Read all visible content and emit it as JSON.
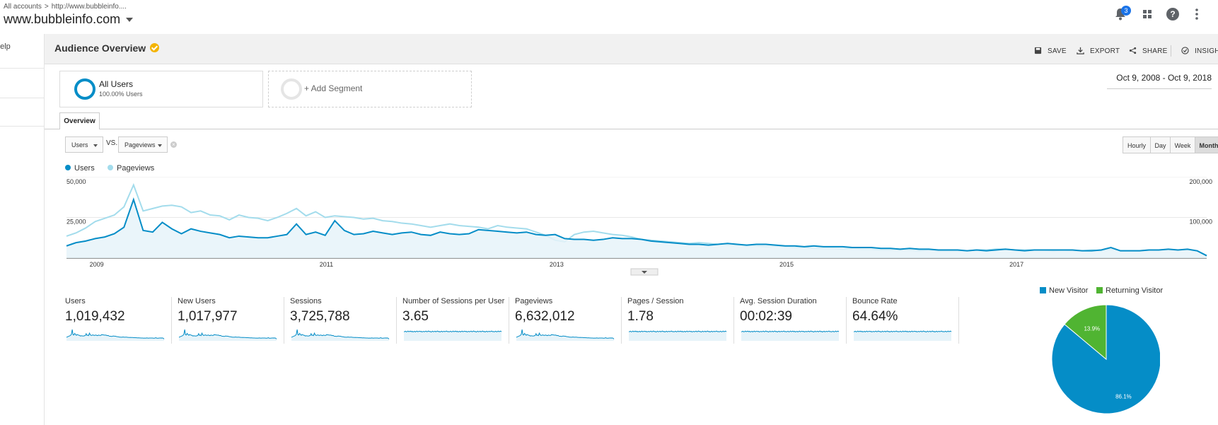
{
  "header": {
    "breadcrumb": [
      "All accounts",
      "http://www.bubbleinfo...."
    ],
    "breadcrumb_sep": ">",
    "account": "www.bubbleinfo.com",
    "notifications_count": "3"
  },
  "leftnav": {
    "help_label": "help"
  },
  "page": {
    "title": "Audience Overview",
    "actions": {
      "save": "SAVE",
      "export": "EXPORT",
      "share": "SHARE",
      "insights": "INSIGHTS"
    },
    "date_range": "Oct 9, 2008 - Oct 9, 2018"
  },
  "segments": [
    {
      "name": "All Users",
      "sub": "100.00% Users"
    },
    {
      "name": "+ Add Segment"
    }
  ],
  "tabs": {
    "overview": "Overview"
  },
  "controls": {
    "metric1": "Users",
    "vs": "VS.",
    "metric2": "Pageviews",
    "periods": [
      "Hourly",
      "Day",
      "Week",
      "Month"
    ],
    "selected_period": "Month"
  },
  "colors": {
    "users": "#058dc7",
    "pageviews": "#a3dcec",
    "new_visitor": "#058dc7",
    "returning_visitor": "#50b432"
  },
  "chart_data": {
    "type": "line",
    "legend": [
      "Users",
      "Pageviews"
    ],
    "left_axis_ticks": [
      "50,000",
      "25,000"
    ],
    "right_axis_ticks": [
      "200,000",
      "100,000"
    ],
    "x_ticks": [
      "2009",
      "2011",
      "2013",
      "2015",
      "2017"
    ],
    "ylim_left": [
      0,
      50000
    ],
    "ylim_right": [
      0,
      200000
    ],
    "series": [
      {
        "name": "Users",
        "axis": "left",
        "values": [
          7500,
          9500,
          10500,
          12000,
          13000,
          15000,
          19000,
          36000,
          17000,
          16000,
          22000,
          18000,
          15000,
          18000,
          16500,
          15500,
          14500,
          12500,
          13500,
          13000,
          12500,
          12500,
          13500,
          14500,
          21000,
          14500,
          16000,
          14000,
          23000,
          17000,
          14500,
          15000,
          16500,
          15500,
          14500,
          15500,
          16000,
          14500,
          14000,
          16000,
          15000,
          14500,
          15000,
          17500,
          17000,
          16500,
          16000,
          15500,
          16000,
          14500,
          14000,
          14500,
          12000,
          11500,
          11500,
          11000,
          11500,
          12500,
          12000,
          12000,
          11500,
          10500,
          10000,
          9500,
          9000,
          8500,
          8500,
          8000,
          8500,
          9000,
          8500,
          8000,
          8500,
          8500,
          8000,
          7500,
          7500,
          7000,
          7500,
          7000,
          7000,
          7000,
          6500,
          6500,
          6500,
          6000,
          6000,
          5500,
          6000,
          5500,
          5500,
          5000,
          5000,
          5000,
          4500,
          5000,
          4500,
          5000,
          5500,
          5000,
          4500,
          5000,
          5000,
          5000,
          5000,
          5000,
          4500,
          4500,
          5000,
          6500,
          4500,
          4500,
          4500,
          5000,
          5000,
          5500,
          5000,
          5500,
          4500,
          1500
        ]
      },
      {
        "name": "Pageviews",
        "axis": "right",
        "values": [
          54000,
          62000,
          74000,
          90000,
          98000,
          106000,
          126000,
          180000,
          116000,
          122000,
          128000,
          130000,
          126000,
          112000,
          116000,
          106000,
          104000,
          94000,
          106000,
          100000,
          98000,
          92000,
          100000,
          110000,
          122000,
          104000,
          114000,
          100000,
          104000,
          102000,
          100000,
          96000,
          98000,
          92000,
          90000,
          86000,
          84000,
          80000,
          76000,
          80000,
          84000,
          80000,
          78000,
          76000,
          72000,
          80000,
          76000,
          74000,
          72000,
          64000,
          56000,
          44000,
          40000,
          58000,
          64000,
          66000,
          62000,
          58000,
          56000,
          52000,
          46000,
          44000,
          42000,
          40000,
          38000,
          36000,
          38000,
          36000,
          34000,
          32000,
          32000,
          30000,
          30000,
          28000,
          30000,
          28000,
          26000,
          26000,
          24000,
          24000,
          24000,
          22000,
          24000,
          22000,
          22000,
          20000,
          20000,
          20000,
          20000,
          18000,
          20000,
          18000,
          18000,
          18000,
          18000,
          20000,
          20000,
          22000,
          22000,
          20000,
          20000,
          20000,
          20000,
          18000,
          20000,
          18000,
          18000,
          20000,
          18000,
          22000,
          18000,
          18000,
          18000,
          20000,
          20000,
          20000,
          20000,
          20000,
          18000,
          6000
        ]
      }
    ]
  },
  "metrics": [
    {
      "label": "Users",
      "value": "1,019,432"
    },
    {
      "label": "New Users",
      "value": "1,017,977"
    },
    {
      "label": "Sessions",
      "value": "3,725,788"
    },
    {
      "label": "Number of Sessions per User",
      "value": "3.65"
    },
    {
      "label": "Pageviews",
      "value": "6,632,012"
    },
    {
      "label": "Pages / Session",
      "value": "1.78"
    },
    {
      "label": "Avg. Session Duration",
      "value": "00:02:39"
    },
    {
      "label": "Bounce Rate",
      "value": "64.64%"
    }
  ],
  "pie": {
    "legend": [
      "New Visitor",
      "Returning Visitor"
    ],
    "values": [
      86.1,
      13.9
    ],
    "labels": [
      "86.1%",
      "13.9%"
    ]
  }
}
